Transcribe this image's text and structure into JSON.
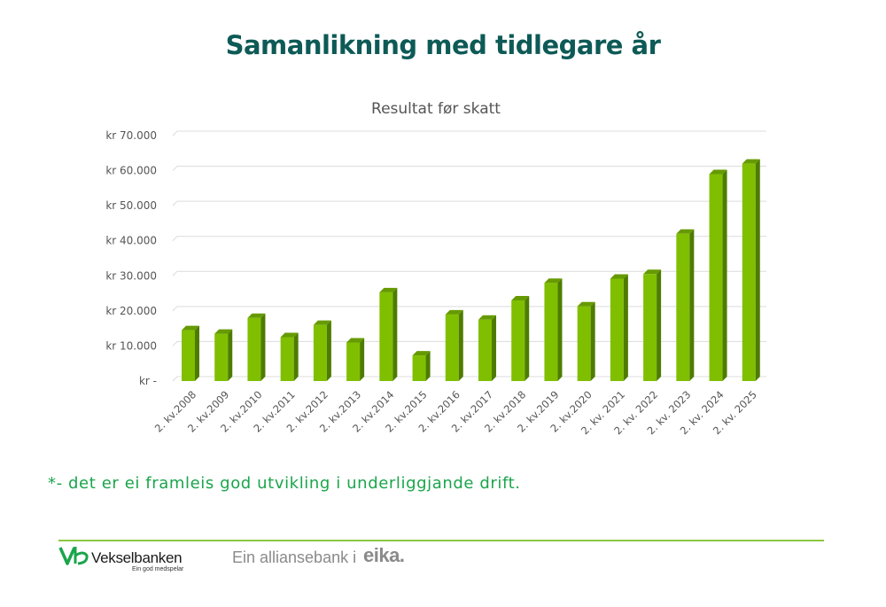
{
  "slide": {
    "title": "Samanlikning med tidlegare år",
    "footnote": "*- det er ei framleis god utvikling i underliggjande drift."
  },
  "footer": {
    "bank_name": "Vekselbanken",
    "bank_tagline": "Ein god medspelar",
    "alliance_text": "Ein alliansebank i",
    "alliance_brand": "eika."
  },
  "colors": {
    "title": "#0d5a56",
    "footnote": "#1aa54b",
    "bar_front": "#7fbf00",
    "bar_side": "#4e7c00",
    "bar_top": "#669a00",
    "rule": "#8cc63f",
    "logo": "#1aa54b"
  },
  "chart_data": {
    "type": "bar",
    "title": "Resultat før skatt",
    "xlabel": "",
    "ylabel": "",
    "ylim": [
      0,
      70000
    ],
    "y_ticks": [
      "kr -",
      "kr 10.000",
      "kr 20.000",
      "kr 30.000",
      "kr 40.000",
      "kr 50.000",
      "kr 60.000",
      "kr 70.000"
    ],
    "grid": true,
    "legend": "none",
    "categories": [
      "2. kv.2008",
      "2. kv.2009",
      "2. kv.2010",
      "2. kv.2011",
      "2. kv.2012",
      "2. kv.2013",
      "2. kv.2014",
      "2. kv.2015",
      "2. kv.2016",
      "2. kv.2017",
      "2. kv.2018",
      "2. kv.2019",
      "2. kv.2020",
      "2. kv. 2021",
      "2. kv. 2022",
      "2. kv. 2023",
      "2. kv. 2024",
      "2. kv. 2025"
    ],
    "values": [
      14500,
      13500,
      18000,
      12500,
      16000,
      11000,
      25300,
      7300,
      19000,
      17500,
      23000,
      28000,
      21300,
      29200,
      30500,
      42000,
      59000,
      62000
    ]
  }
}
